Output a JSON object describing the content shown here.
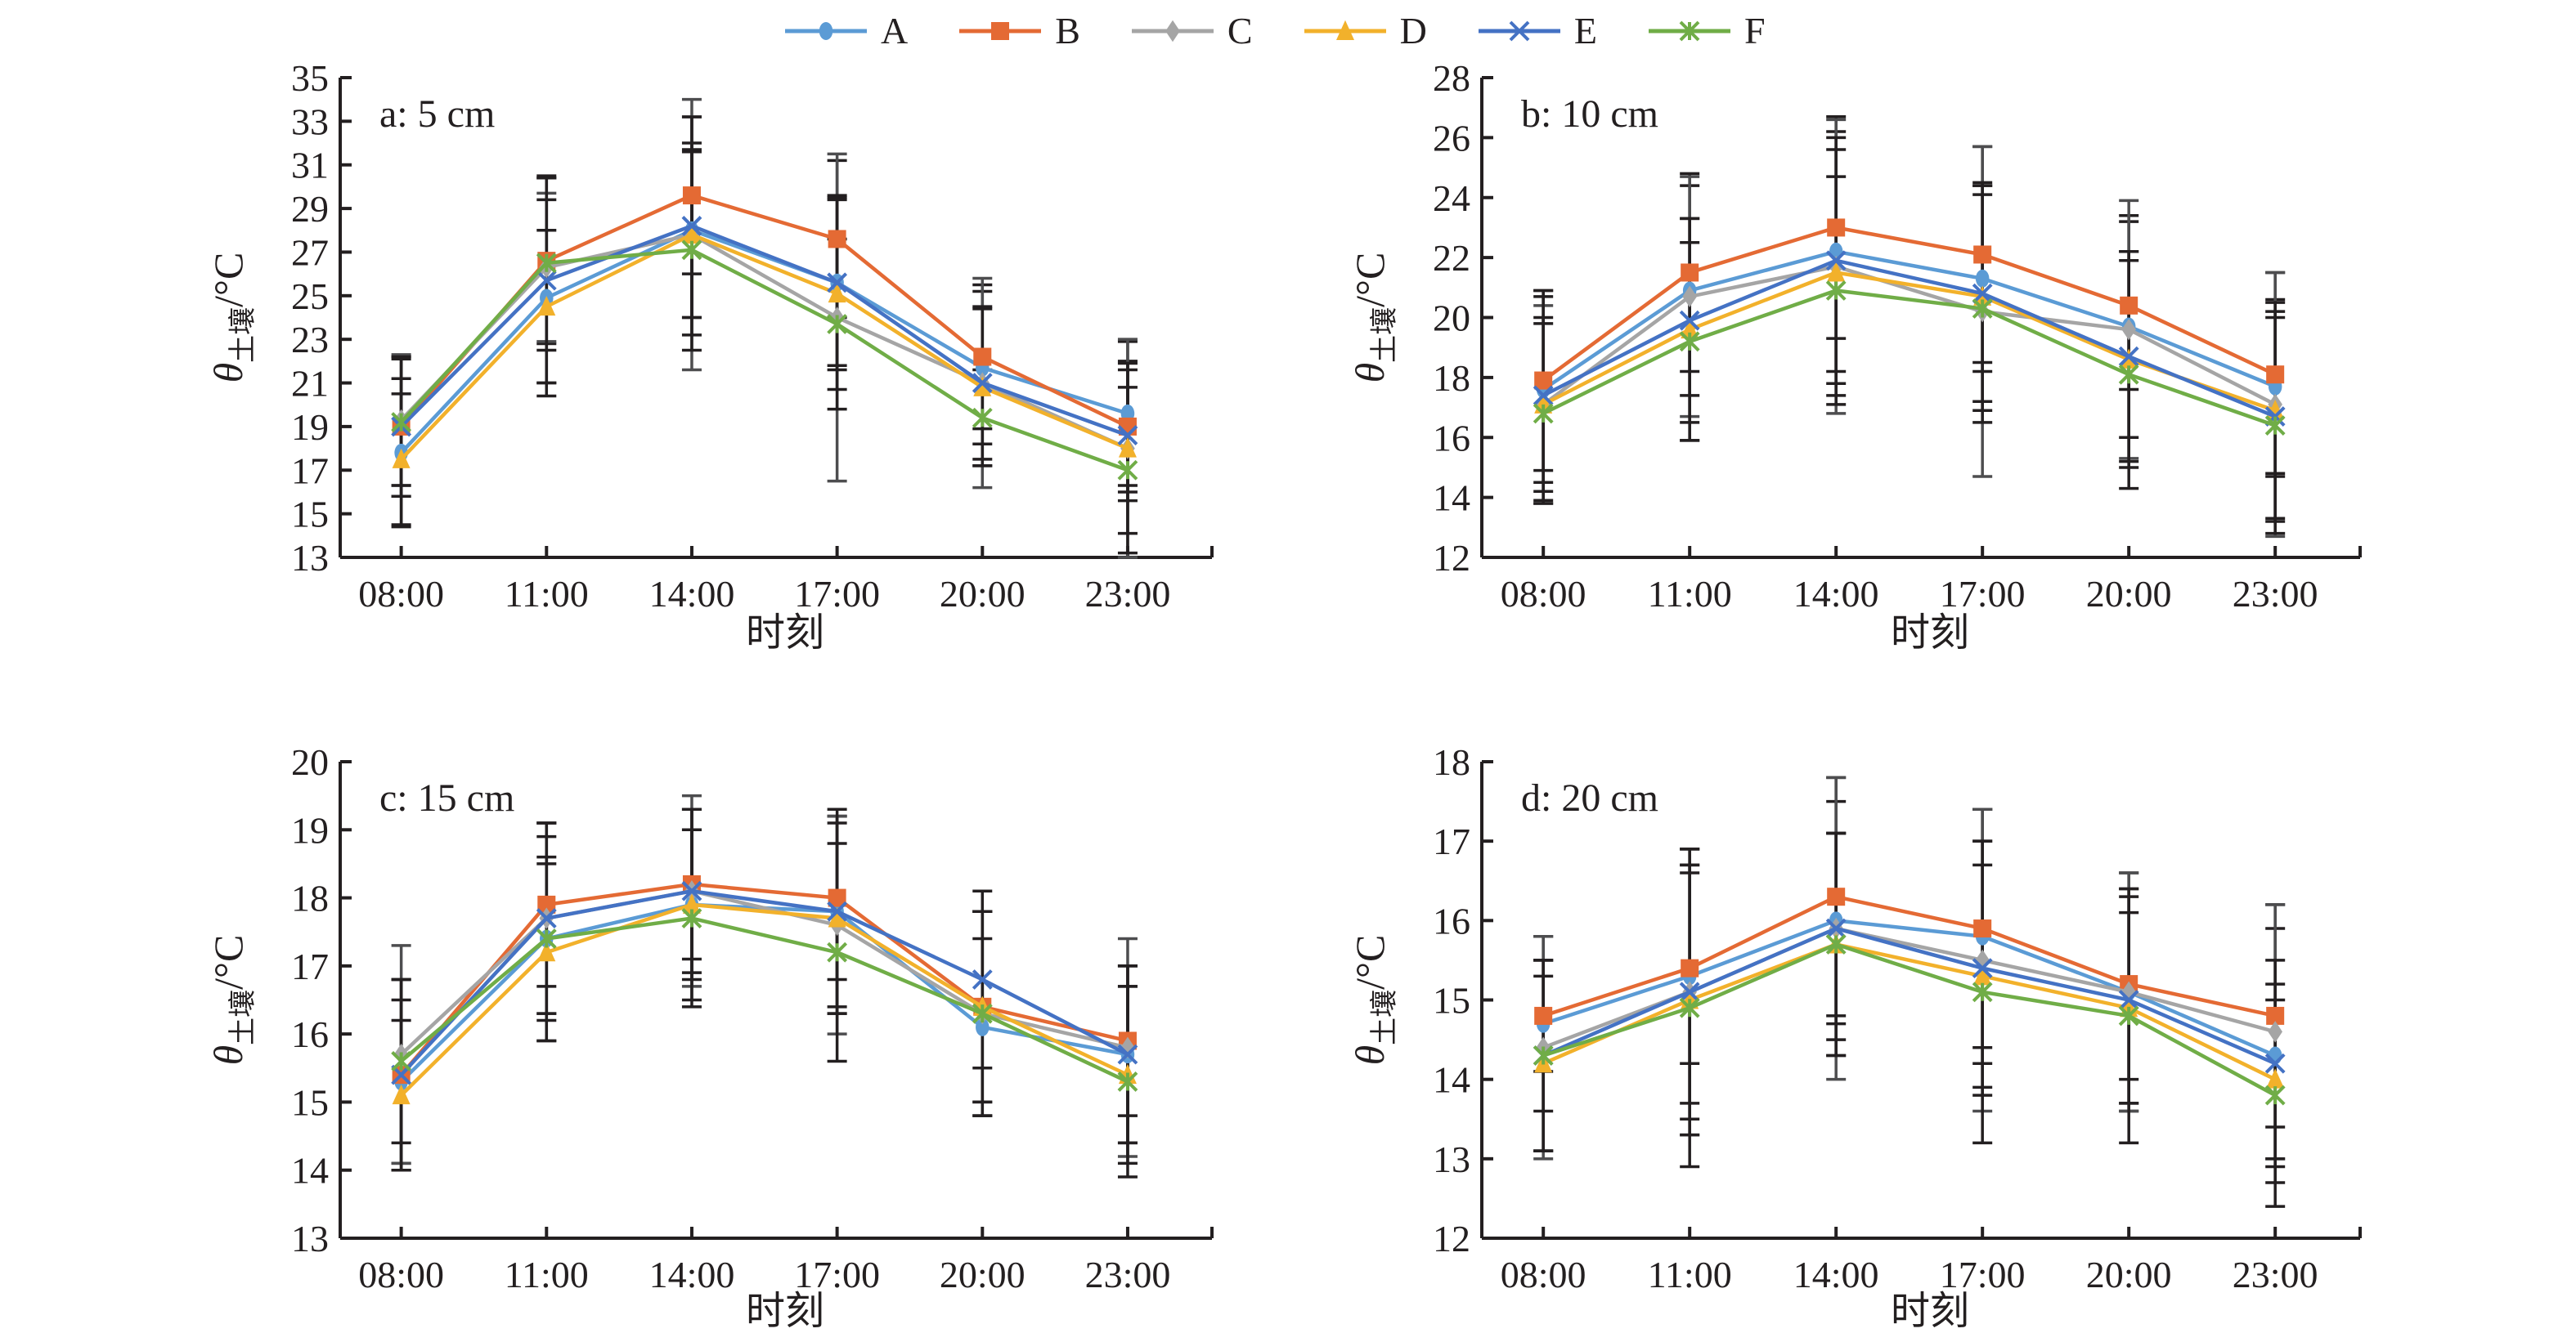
{
  "legend": [
    {
      "key": "A",
      "label": "A",
      "color": "#5b9bd5",
      "marker": "circle"
    },
    {
      "key": "B",
      "label": "B",
      "color": "#e46a34",
      "marker": "square"
    },
    {
      "key": "C",
      "label": "C",
      "color": "#a5a5a5",
      "marker": "diamond"
    },
    {
      "key": "D",
      "label": "D",
      "color": "#f2b12b",
      "marker": "triangle"
    },
    {
      "key": "E",
      "label": "E",
      "color": "#4472c4",
      "marker": "x"
    },
    {
      "key": "F",
      "label": "F",
      "color": "#70ad47",
      "marker": "star"
    }
  ],
  "chart_data": [
    {
      "type": "line",
      "title": "a: 5 cm",
      "xlabel": "时刻",
      "ylabel": "θ土壤/°C",
      "ylabel_symbol": "θ",
      "ylabel_subscript": "土壤",
      "ylabel_unit": "/°C",
      "categories": [
        "08:00",
        "11:00",
        "14:00",
        "17:00",
        "20:00",
        "23:00"
      ],
      "ylim": [
        13,
        35
      ],
      "yticks": [
        13,
        15,
        17,
        19,
        21,
        23,
        25,
        27,
        29,
        31,
        33,
        35
      ],
      "grid": false,
      "error_bars": true,
      "series": [
        {
          "name": "A",
          "values": [
            17.8,
            24.9,
            28.0,
            25.6,
            21.7,
            19.6
          ],
          "err": [
            3.4,
            4.5,
            4.0,
            3.8,
            3.5,
            3.3
          ]
        },
        {
          "name": "B",
          "values": [
            19.0,
            26.6,
            29.6,
            27.6,
            22.2,
            19.0
          ],
          "err": [
            3.2,
            3.8,
            3.6,
            3.6,
            3.3,
            3.0
          ]
        },
        {
          "name": "C",
          "values": [
            19.3,
            26.3,
            27.8,
            24.0,
            21.0,
            18.0
          ],
          "err": [
            3.0,
            3.4,
            6.2,
            7.5,
            4.8,
            5.0
          ]
        },
        {
          "name": "D",
          "values": [
            17.5,
            24.5,
            27.8,
            25.1,
            20.8,
            18.0
          ],
          "err": [
            3.0,
            3.5,
            3.8,
            4.4,
            3.6,
            3.9
          ]
        },
        {
          "name": "E",
          "values": [
            19.0,
            25.7,
            28.2,
            25.6,
            21.0,
            18.6
          ],
          "err": [
            3.2,
            4.7,
            5.0,
            4.0,
            3.5,
            3.0
          ]
        },
        {
          "name": "F",
          "values": [
            19.2,
            26.5,
            27.1,
            23.7,
            19.4,
            17.0
          ],
          "err": [
            2.9,
            4.0,
            4.6,
            3.9,
            2.2,
            3.8
          ]
        }
      ]
    },
    {
      "type": "line",
      "title": "b: 10 cm",
      "xlabel": "时刻",
      "ylabel": "θ土壤/°C",
      "ylabel_symbol": "θ",
      "ylabel_subscript": "土壤",
      "ylabel_unit": "/°C",
      "categories": [
        "08:00",
        "11:00",
        "14:00",
        "17:00",
        "20:00",
        "23:00"
      ],
      "ylim": [
        12,
        28
      ],
      "yticks": [
        12,
        14,
        16,
        18,
        20,
        22,
        24,
        26,
        28
      ],
      "grid": false,
      "error_bars": true,
      "series": [
        {
          "name": "A",
          "values": [
            17.6,
            20.9,
            22.2,
            21.3,
            19.7,
            17.7
          ],
          "err": [
            3.1,
            3.5,
            4.0,
            3.1,
            3.7,
            2.9
          ]
        },
        {
          "name": "B",
          "values": [
            17.9,
            21.5,
            23.0,
            22.1,
            20.4,
            18.1
          ],
          "err": [
            3.0,
            3.3,
            3.7,
            3.6,
            2.8,
            3.4
          ]
        },
        {
          "name": "C",
          "values": [
            17.1,
            20.7,
            21.7,
            20.2,
            19.6,
            17.1
          ],
          "err": [
            3.3,
            4.0,
            4.9,
            5.5,
            4.3,
            4.4
          ]
        },
        {
          "name": "D",
          "values": [
            17.1,
            19.6,
            21.5,
            20.7,
            18.6,
            16.9
          ],
          "err": [
            2.9,
            3.7,
            4.1,
            3.8,
            3.6,
            3.6
          ]
        },
        {
          "name": "E",
          "values": [
            17.4,
            19.9,
            21.9,
            20.8,
            18.7,
            16.7
          ],
          "err": [
            3.5,
            3.4,
            4.1,
            3.6,
            3.5,
            3.5
          ]
        },
        {
          "name": "F",
          "values": [
            16.8,
            19.2,
            20.9,
            20.3,
            18.1,
            16.4
          ],
          "err": [
            3.0,
            3.3,
            3.8,
            3.8,
            3.8,
            3.6
          ]
        }
      ]
    },
    {
      "type": "line",
      "title": "c: 15 cm",
      "xlabel": "时刻",
      "ylabel": "θ土壤/°C",
      "ylabel_symbol": "θ",
      "ylabel_subscript": "土壤",
      "ylabel_unit": "/°C",
      "categories": [
        "08:00",
        "11:00",
        "14:00",
        "17:00",
        "20:00",
        "23:00"
      ],
      "ylim": [
        13,
        20
      ],
      "yticks": [
        13,
        14,
        15,
        16,
        17,
        18,
        19,
        20
      ],
      "grid": false,
      "error_bars": true,
      "series": [
        {
          "name": "A",
          "values": [
            15.3,
            17.4,
            17.9,
            17.8,
            16.1,
            15.7
          ],
          "err": [
            1.2,
            1.2,
            1.4,
            1.4,
            1.3,
            1.3
          ]
        },
        {
          "name": "B",
          "values": [
            15.4,
            17.9,
            18.2,
            18.0,
            16.4,
            15.9
          ],
          "err": [
            1.4,
            1.2,
            1.1,
            1.2,
            1.4,
            1.1
          ]
        },
        {
          "name": "C",
          "values": [
            15.7,
            17.7,
            18.1,
            17.6,
            16.3,
            15.8
          ],
          "err": [
            1.6,
            1.4,
            1.4,
            1.6,
            1.5,
            1.6
          ]
        },
        {
          "name": "D",
          "values": [
            15.1,
            17.2,
            17.9,
            17.7,
            16.4,
            15.4
          ],
          "err": [
            1.1,
            1.3,
            1.1,
            1.4,
            1.4,
            1.3
          ]
        },
        {
          "name": "E",
          "values": [
            15.4,
            17.7,
            18.1,
            17.8,
            16.8,
            15.7
          ],
          "err": [
            1.4,
            1.4,
            1.2,
            1.5,
            1.3,
            1.3
          ]
        },
        {
          "name": "F",
          "values": [
            15.6,
            17.4,
            17.7,
            17.2,
            16.3,
            15.3
          ],
          "err": [
            1.2,
            1.5,
            1.3,
            1.6,
            1.5,
            1.4
          ]
        }
      ]
    },
    {
      "type": "line",
      "title": "d: 20 cm",
      "xlabel": "时刻",
      "ylabel": "θ土壤/°C",
      "ylabel_symbol": "θ",
      "ylabel_subscript": "土壤",
      "ylabel_unit": "/°C",
      "categories": [
        "08:00",
        "11:00",
        "14:00",
        "17:00",
        "20:00",
        "23:00"
      ],
      "ylim": [
        12,
        18
      ],
      "yticks": [
        12,
        13,
        14,
        15,
        16,
        17,
        18
      ],
      "grid": false,
      "error_bars": true,
      "series": [
        {
          "name": "A",
          "values": [
            14.7,
            15.3,
            16.0,
            15.8,
            15.1,
            14.3
          ],
          "err": [
            1.1,
            1.6,
            1.5,
            1.6,
            1.5,
            1.6
          ]
        },
        {
          "name": "B",
          "values": [
            14.8,
            15.4,
            16.3,
            15.9,
            15.2,
            14.8
          ],
          "err": [
            0.7,
            1.2,
            1.5,
            1.5,
            1.2,
            1.4
          ]
        },
        {
          "name": "C",
          "values": [
            14.4,
            15.1,
            15.9,
            15.5,
            15.1,
            14.6
          ],
          "err": [
            1.4,
            1.8,
            1.9,
            1.9,
            1.5,
            1.6
          ]
        },
        {
          "name": "D",
          "values": [
            14.2,
            15.0,
            15.7,
            15.3,
            14.9,
            14.0
          ],
          "err": [
            1.1,
            1.7,
            1.4,
            1.4,
            1.2,
            1.0
          ]
        },
        {
          "name": "E",
          "values": [
            14.3,
            15.1,
            15.9,
            15.4,
            15.0,
            14.2
          ],
          "err": [
            1.2,
            1.6,
            1.2,
            1.6,
            1.3,
            1.3
          ]
        },
        {
          "name": "F",
          "values": [
            14.3,
            14.9,
            15.7,
            15.1,
            14.8,
            13.8
          ],
          "err": [
            1.2,
            2.0,
            1.4,
            1.9,
            1.6,
            1.4
          ]
        }
      ]
    }
  ]
}
